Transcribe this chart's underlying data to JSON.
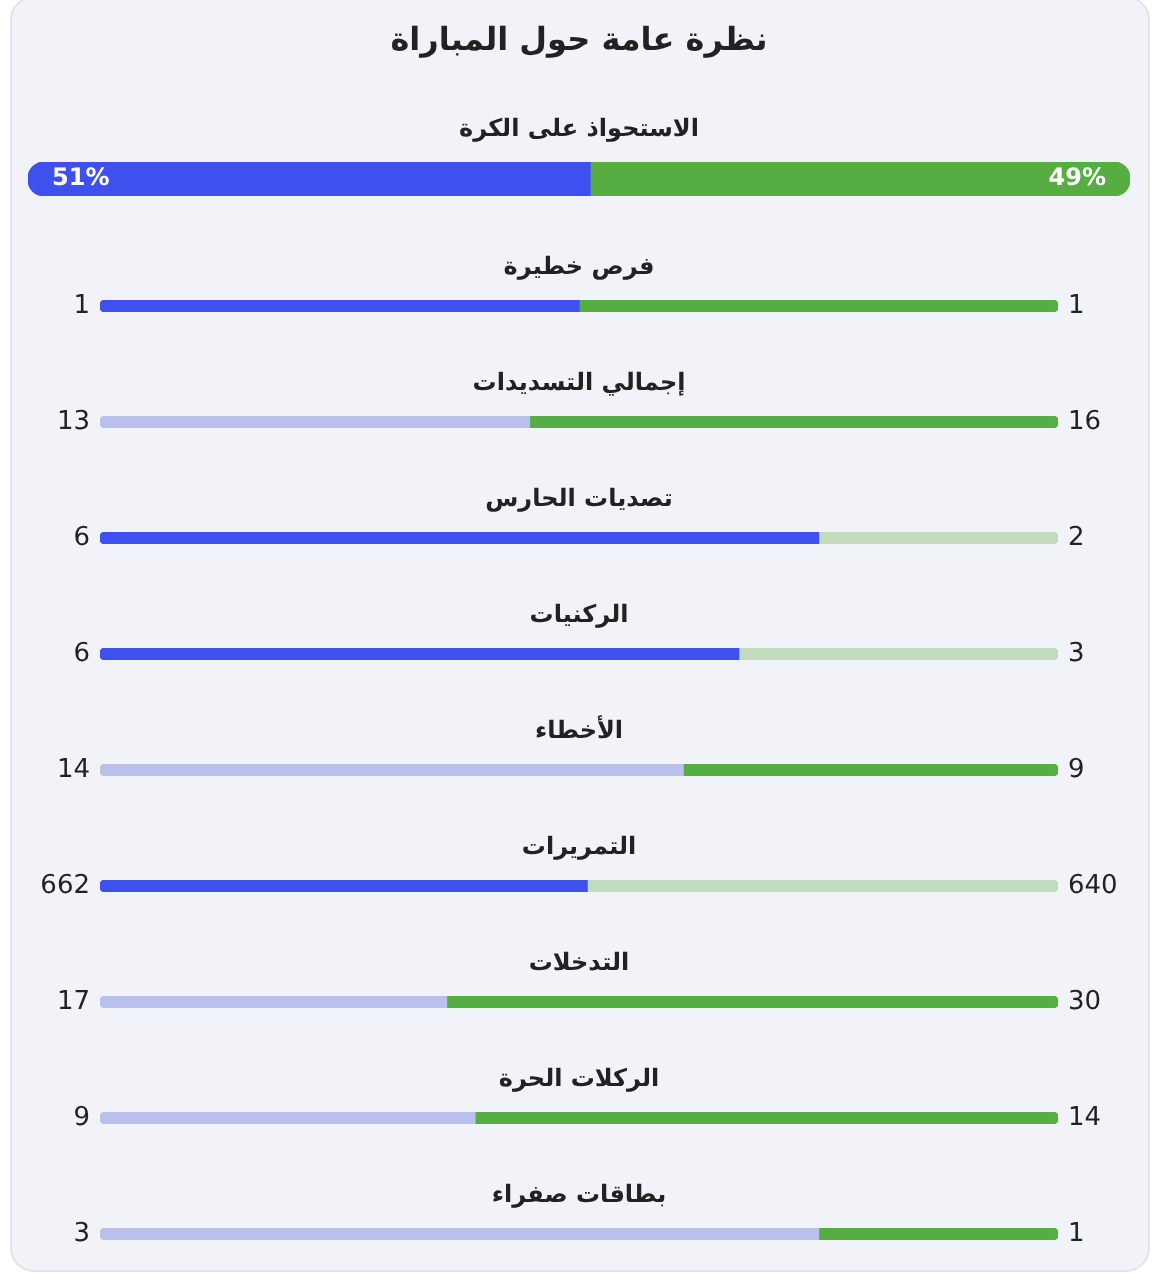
{
  "chart_data": [
    {
      "type": "bar",
      "orientation": "horizontal",
      "stacked": true,
      "title": "نظرة عامة حول المباراة",
      "categories": [
        "الاستحواذ على الكرة"
      ],
      "series": [
        {
          "color": "#3e50ee",
          "values": [
            51
          ],
          "value_labels": [
            "51%"
          ]
        },
        {
          "color": "#56ae43",
          "values": [
            49
          ],
          "value_labels": [
            "49%"
          ]
        }
      ],
      "tick_labels": "y"
    },
    {
      "type": "bar",
      "orientation": "horizontal",
      "stacked": true,
      "categories": [
        "فرص خطيرة"
      ],
      "series": [
        {
          "color": "#3e50ee",
          "values": [
            1
          ]
        },
        {
          "color": "#56ae43",
          "values": [
            1
          ]
        }
      ],
      "data_labels": true,
      "tick_labels": "y"
    },
    {
      "type": "bar",
      "orientation": "horizontal",
      "stacked": true,
      "categories": [
        "إجمالي التسديدات"
      ],
      "series": [
        {
          "color": "#b8c0eb",
          "values": [
            13
          ]
        },
        {
          "color": "#56ae43",
          "values": [
            16
          ]
        }
      ],
      "data_labels": true,
      "tick_labels": "y"
    },
    {
      "type": "bar",
      "orientation": "horizontal",
      "stacked": true,
      "categories": [
        "تصديات الحارس"
      ],
      "series": [
        {
          "color": "#3e50ee",
          "values": [
            6
          ]
        },
        {
          "color": "#c1dbbd",
          "values": [
            2
          ]
        }
      ],
      "data_labels": true,
      "tick_labels": "y"
    },
    {
      "type": "bar",
      "orientation": "horizontal",
      "stacked": true,
      "categories": [
        "الركنيات"
      ],
      "series": [
        {
          "color": "#3e50ee",
          "values": [
            6
          ]
        },
        {
          "color": "#c1dbbd",
          "values": [
            3
          ]
        }
      ],
      "data_labels": true,
      "tick_labels": "y"
    },
    {
      "type": "bar",
      "orientation": "horizontal",
      "stacked": true,
      "categories": [
        "الأخطاء"
      ],
      "series": [
        {
          "color": "#b8c0eb",
          "values": [
            14
          ]
        },
        {
          "color": "#56ae43",
          "values": [
            9
          ]
        }
      ],
      "data_labels": true,
      "tick_labels": "y"
    },
    {
      "type": "bar",
      "orientation": "horizontal",
      "stacked": true,
      "categories": [
        "التمريرات"
      ],
      "series": [
        {
          "color": "#3e50ee",
          "values": [
            662
          ]
        },
        {
          "color": "#c1dbbd",
          "values": [
            640
          ]
        }
      ],
      "data_labels": true,
      "tick_labels": "y"
    },
    {
      "type": "bar",
      "orientation": "horizontal",
      "stacked": true,
      "categories": [
        "التدخلات"
      ],
      "series": [
        {
          "color": "#b8c0eb",
          "values": [
            17
          ]
        },
        {
          "color": "#56ae43",
          "values": [
            30
          ]
        }
      ],
      "data_labels": true,
      "tick_labels": "y"
    },
    {
      "type": "bar",
      "orientation": "horizontal",
      "stacked": true,
      "categories": [
        "الركلات الحرة"
      ],
      "series": [
        {
          "color": "#b8c0eb",
          "values": [
            9
          ]
        },
        {
          "color": "#56ae43",
          "values": [
            14
          ]
        }
      ],
      "data_labels": true,
      "tick_labels": "y"
    },
    {
      "type": "bar",
      "orientation": "horizontal",
      "stacked": true,
      "categories": [
        "بطاقات صفراء"
      ],
      "series": [
        {
          "color": "#b8c0eb",
          "values": [
            3
          ]
        },
        {
          "color": "#56ae43",
          "values": [
            1
          ]
        }
      ],
      "data_labels": true,
      "tick_labels": "y"
    }
  ]
}
